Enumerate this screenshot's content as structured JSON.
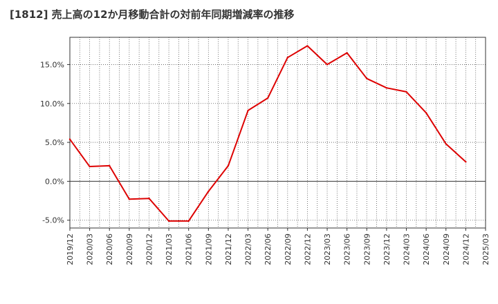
{
  "chart_data": {
    "type": "line",
    "title": "[1812]  売上高の12か月移動合計の対前年同期増減率の推移",
    "xlabel": "",
    "ylabel": "",
    "ylim": [
      -6,
      18.5
    ],
    "yticks": [
      -5,
      0,
      5,
      10,
      15
    ],
    "ytick_labels": [
      "-5.0%",
      "0.0%",
      "5.0%",
      "10.0%",
      "15.0%"
    ],
    "categories": [
      "2019/12",
      "2020/03",
      "2020/06",
      "2020/09",
      "2020/12",
      "2021/03",
      "2021/06",
      "2021/09",
      "2021/12",
      "2022/03",
      "2022/06",
      "2022/09",
      "2022/12",
      "2023/03",
      "2023/06",
      "2023/09",
      "2023/12",
      "2024/03",
      "2024/06",
      "2024/09",
      "2024/12",
      "2025/03"
    ],
    "series": [
      {
        "name": "増減率",
        "color": "#dd0000",
        "values": [
          5.4,
          1.9,
          2.0,
          -2.3,
          -2.2,
          -5.1,
          -5.1,
          -1.3,
          2.0,
          9.1,
          10.7,
          15.9,
          17.4,
          15.0,
          16.5,
          13.2,
          12.0,
          11.5,
          8.8,
          4.8,
          2.5,
          null
        ]
      }
    ],
    "grid": true
  }
}
